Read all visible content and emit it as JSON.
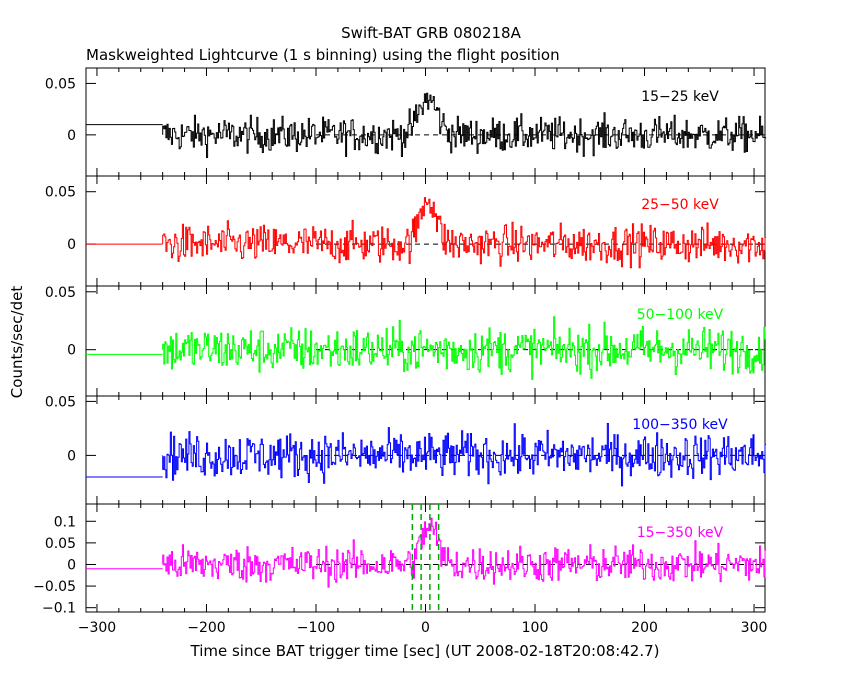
{
  "chart_data": {
    "type": "line",
    "title": "Swift-BAT GRB 080218A",
    "subtitle": "Maskweighted Lightcurve (1 s binning) using the flight position",
    "xlabel": "Time since BAT trigger time [sec] (UT 2008-02-18T20:08:42.7)",
    "ylabel": "Counts/sec/det",
    "xlim": [
      -310,
      310
    ],
    "x_ticks": [
      -300,
      -200,
      -100,
      0,
      100,
      200,
      300
    ],
    "x_tick_labels": [
      "−300",
      "−200",
      "−100",
      "0",
      "100",
      "200",
      "300"
    ],
    "data_start": -240,
    "data_end": 310,
    "grid": false,
    "panels": [
      {
        "name": "15−25 keV",
        "color": "#000000",
        "ylim": [
          -0.04,
          0.065
        ],
        "y_ticks": [
          0,
          0.05
        ],
        "y_tick_labels": [
          "0",
          "0.05"
        ],
        "pre_level": 0.01,
        "noise": 0.012,
        "peak": {
          "t": 2,
          "amp": 0.035,
          "width": 12
        }
      },
      {
        "name": "25−50 keV",
        "color": "#ff0000",
        "ylim": [
          -0.04,
          0.065
        ],
        "y_ticks": [
          0,
          0.05
        ],
        "y_tick_labels": [
          "0",
          "0.05"
        ],
        "pre_level": 0.0,
        "noise": 0.013,
        "peak": {
          "t": 2,
          "amp": 0.045,
          "width": 10
        }
      },
      {
        "name": "50−100 keV",
        "color": "#00ff00",
        "ylim": [
          -0.04,
          0.055
        ],
        "y_ticks": [
          0,
          0.05
        ],
        "y_tick_labels": [
          "0",
          "0.05"
        ],
        "pre_level": -0.004,
        "noise": 0.014,
        "peak": null
      },
      {
        "name": "100−350 keV",
        "color": "#0000ff",
        "ylim": [
          -0.045,
          0.055
        ],
        "y_ticks": [
          0,
          0.05
        ],
        "y_tick_labels": [
          "0",
          "0.05"
        ],
        "pre_level": -0.02,
        "noise": 0.015,
        "peak": null
      },
      {
        "name": "15−350 keV",
        "color": "#ff00ff",
        "ylim": [
          -0.11,
          0.14
        ],
        "y_ticks": [
          -0.1,
          -0.05,
          0,
          0.05,
          0.1
        ],
        "y_tick_labels": [
          "−0.1",
          "−0.05",
          "0",
          "0.05",
          "0.1"
        ],
        "pre_level": -0.01,
        "noise": 0.03,
        "peak": {
          "t": 3,
          "amp": 0.09,
          "width": 10
        },
        "markers": [
          -12,
          -4,
          4,
          12
        ]
      }
    ]
  }
}
